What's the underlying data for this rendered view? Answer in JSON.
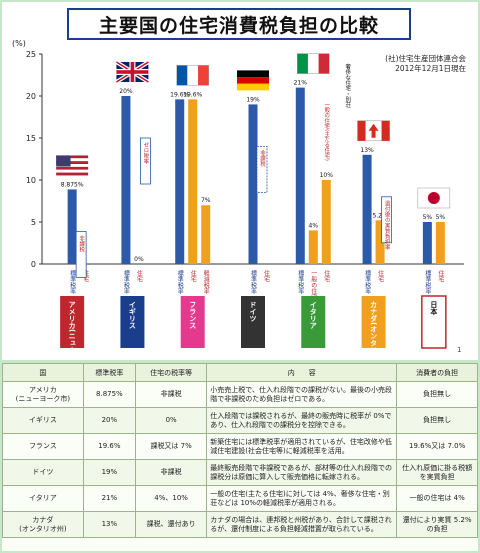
{
  "chart_data": {
    "type": "bar",
    "title": "主要国の住宅消費税負担の比較",
    "source": [
      "(社)住宅生産団体連合会",
      "2012年12月1日現在"
    ],
    "ylabel": "(%)",
    "ylim": [
      0,
      25
    ],
    "yticks": [
      0,
      5,
      10,
      15,
      20,
      25
    ],
    "colors": {
      "standard": "#2c5aa8",
      "housing": "#f0a01e",
      "axis": "#1a3e8c"
    },
    "countries": [
      {
        "name": "アメリカ(ニューヨーク市)",
        "flag": "us",
        "box_color": "#c0262d",
        "bars": [
          {
            "label": "標準税率",
            "value": 8.875,
            "text": "8.875%"
          }
        ],
        "note": "非課税",
        "bar_labels": [
          "標準税率",
          "住宅"
        ]
      },
      {
        "name": "イギリス",
        "flag": "uk",
        "box_color": "#1a3e8c",
        "bars": [
          {
            "label": "標準税率",
            "value": 20,
            "text": "20%"
          },
          {
            "label": "住宅",
            "value": 0,
            "text": "0%"
          }
        ],
        "note": "ゼロ税率",
        "bar_labels": [
          "標準税率",
          "住宅"
        ]
      },
      {
        "name": "フランス",
        "flag": "fr",
        "box_color": "#e4398f",
        "bars": [
          {
            "label": "標準税率",
            "value": 19.6,
            "text": "19.6%"
          },
          {
            "label": "住宅",
            "value": 19.6,
            "text": "19.6%"
          },
          {
            "label": "軽減税率",
            "value": 7,
            "text": "7%"
          }
        ],
        "note": "",
        "bar_labels": [
          "標準税率",
          "住宅",
          "軽減税率"
        ]
      },
      {
        "name": "ドイツ",
        "flag": "de",
        "box_color": "#333333",
        "bars": [
          {
            "label": "標準税率",
            "value": 19,
            "text": "19%"
          }
        ],
        "note": "非課税",
        "bar_labels": [
          "標準税率",
          "住宅"
        ]
      },
      {
        "name": "イタリア",
        "flag": "it",
        "box_color": "#3a9a3a",
        "bars": [
          {
            "label": "標準税率",
            "value": 21,
            "text": "21%"
          },
          {
            "label": "住宅",
            "value": 4,
            "text": "4%"
          },
          {
            "label": "住宅",
            "value": 10,
            "text": "10%"
          }
        ],
        "note": "一般の住宅(主たる住宅)",
        "note2": "奢侈な住宅・別荘",
        "bar_labels": [
          "標準税率",
          "一般の住宅",
          "住宅"
        ]
      },
      {
        "name": "カナダ(オンタリオ州)",
        "flag": "ca",
        "box_color": "#f0a01e",
        "bars": [
          {
            "label": "標準税率",
            "value": 13,
            "text": "13%"
          },
          {
            "label": "住宅",
            "value": 5.2,
            "text": "5.2%"
          }
        ],
        "note": "還付後の実質負担率",
        "bar_labels": [
          "標準税率",
          "住宅"
        ]
      },
      {
        "name": "日本",
        "flag": "jp",
        "box_color": "#ffffff",
        "bars": [
          {
            "label": "標準税率",
            "value": 5,
            "text": "5%"
          },
          {
            "label": "住宅",
            "value": 5,
            "text": "5%"
          }
        ],
        "note": "",
        "bar_labels": [
          "標準税率",
          "住宅"
        ]
      }
    ],
    "page_number": "1"
  },
  "table": {
    "headers": [
      "国",
      "標準税率",
      "住宅の税率等",
      "内　　容",
      "消費者の負担"
    ],
    "rows": [
      [
        "アメリカ\n(ニューヨーク市)",
        "8.875%",
        "非課税",
        "小売売上税で、仕入れ段階での課税がない。最後の小売段階で非課税のため負担はゼロである。",
        "負担無し"
      ],
      [
        "イギリス",
        "20%",
        "0%",
        "仕入段階では課税されるが、最終の販売時に税率が 0%であり、仕入れ段階での課税分を控除できる。",
        "負担無し"
      ],
      [
        "フランス",
        "19.6%",
        "課税又は 7%",
        "新築住宅には標準税率が適用されているが、住宅改修や低減住宅建設(社会住宅等)に軽減税率を活用。",
        "19.6%又は 7.0%"
      ],
      [
        "ドイツ",
        "19%",
        "非課税",
        "最終販売段階で非課税であるが、部材等の仕入れ段階での課税分は原価に算入して販売価格に転嫁される。",
        "仕入れ原価に掛る税額を実質負担"
      ],
      [
        "イタリア",
        "21%",
        "4%、10%",
        "一般の住宅(主たる住宅)に対しては 4%、奢侈な住宅・別荘などは 10%の軽減税率が適用される。",
        "一般の住宅は 4%"
      ],
      [
        "カナダ\n(オンタリオ州)",
        "13%",
        "課税、還付あり",
        "カナダの場合は、連邦税と州税があり、合計して課税されるが、還付制度による負担軽減措置が取られている。",
        "還付により実質 5.2%の負担"
      ]
    ]
  }
}
